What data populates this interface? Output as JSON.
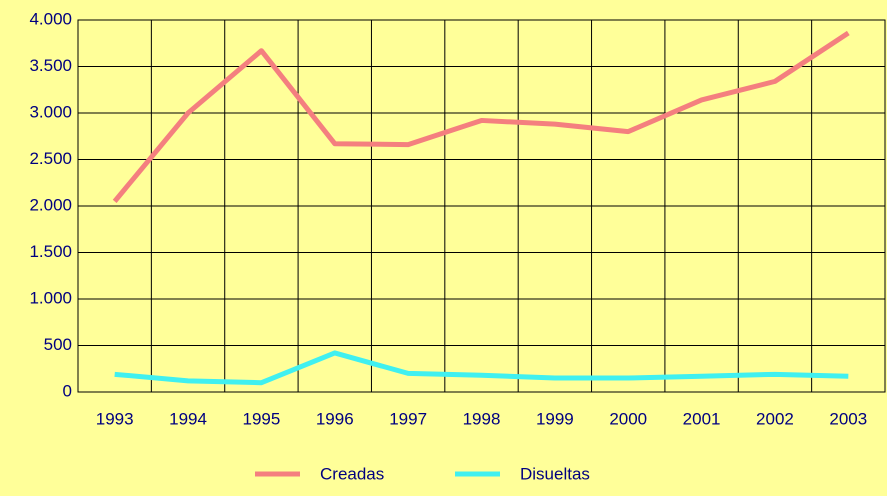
{
  "chart_data": {
    "type": "line",
    "categories": [
      "1993",
      "1994",
      "1995",
      "1996",
      "1997",
      "1998",
      "1999",
      "2000",
      "2001",
      "2002",
      "2003"
    ],
    "series": [
      {
        "name": "Creadas",
        "color": "#f47f7f",
        "values": [
          2050,
          3000,
          3670,
          2670,
          2660,
          2920,
          2880,
          2800,
          3140,
          3340,
          3860
        ]
      },
      {
        "name": "Disueltas",
        "color": "#40f0f0",
        "values": [
          190,
          120,
          100,
          420,
          200,
          180,
          150,
          150,
          170,
          190,
          170
        ]
      }
    ],
    "ylim": [
      0,
      4000
    ],
    "yticks": [
      0,
      500,
      {
        "value": 1000,
        "label": "1.000"
      },
      {
        "value": 1500,
        "label": "1.500"
      },
      {
        "value": 2000,
        "label": "2.000"
      },
      {
        "value": 2500,
        "label": "2.500"
      },
      {
        "value": 3000,
        "label": "3.000"
      },
      {
        "value": 3500,
        "label": "3.500"
      },
      {
        "value": 4000,
        "label": "4.000"
      }
    ],
    "grid": true,
    "legend": "bottom"
  }
}
